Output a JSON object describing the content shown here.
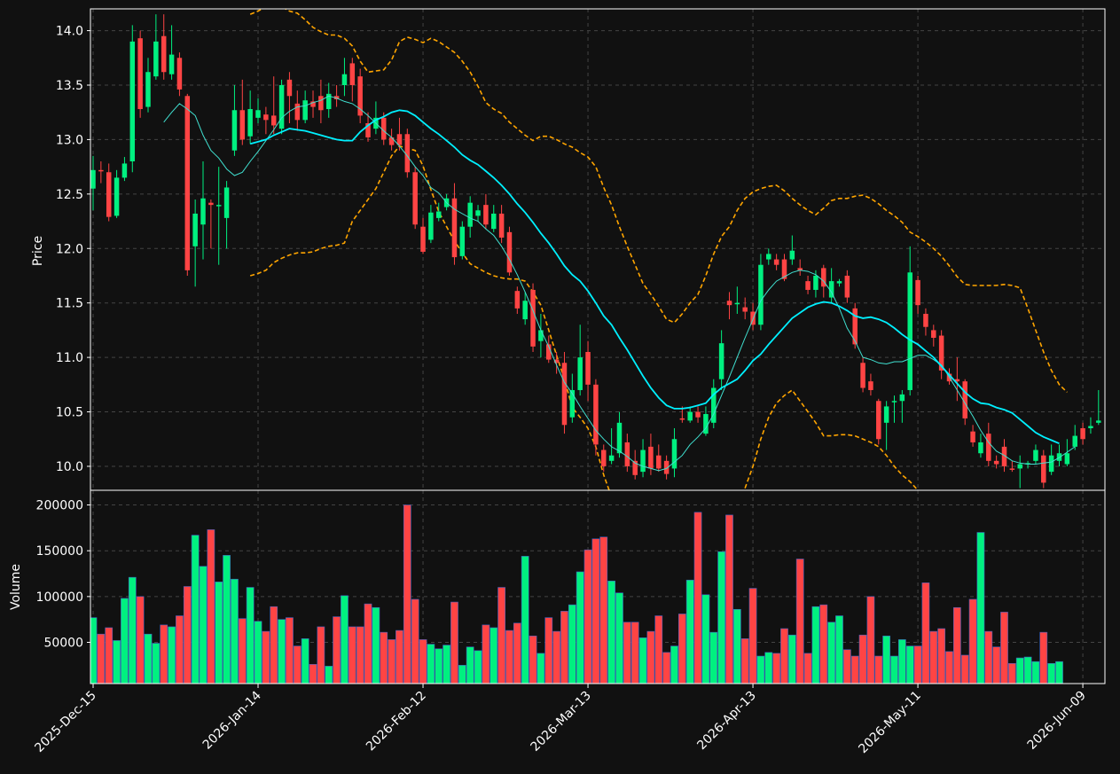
{
  "chart_data": {
    "type": "candlestick",
    "background": "#111111",
    "colors": {
      "up": "#00f080",
      "down": "#ff4444",
      "sma_fast": "#40e0d0",
      "sma_slow": "#00f0ff",
      "bollinger": "#ffa500",
      "grid": "#444444",
      "frame": "#ffffff"
    },
    "price_panel": {
      "ylabel": "Price",
      "ylim": [
        9.78,
        14.2
      ],
      "yticks": [
        "10.0",
        "10.5",
        "11.0",
        "11.5",
        "12.0",
        "12.5",
        "13.0",
        "13.5",
        "14.0"
      ]
    },
    "volume_panel": {
      "ylabel": "Volume",
      "ylim": [
        5000,
        216000
      ],
      "yticks": [
        "50000",
        "100000",
        "150000",
        "200000"
      ]
    },
    "x_tick_labels": [
      "2025-Dec-15",
      "2026-Jan-14",
      "2026-Feb-12",
      "2026-Mar-13",
      "2026-Apr-13",
      "2026-May-11",
      "2026-Jun-09"
    ],
    "x_tick_index": [
      0,
      21,
      42,
      63,
      84,
      105,
      126
    ],
    "candles": [
      [
        12.55,
        12.72,
        12.85,
        12.35
      ],
      [
        12.72,
        12.71,
        12.8,
        12.6
      ],
      [
        12.7,
        12.29,
        12.78,
        12.25
      ],
      [
        12.3,
        12.65,
        12.72,
        12.28
      ],
      [
        12.65,
        12.78,
        12.84,
        12.62
      ],
      [
        12.8,
        13.9,
        14.05,
        12.7
      ],
      [
        13.93,
        13.28,
        14.0,
        13.2
      ],
      [
        13.3,
        13.62,
        13.75,
        13.25
      ],
      [
        13.58,
        13.9,
        14.15,
        13.55
      ],
      [
        13.95,
        13.62,
        14.15,
        13.55
      ],
      [
        13.6,
        13.78,
        14.05,
        13.55
      ],
      [
        13.75,
        13.46,
        13.8,
        13.4
      ],
      [
        13.4,
        11.8,
        13.42,
        11.75
      ],
      [
        12.02,
        12.32,
        12.45,
        11.65
      ],
      [
        12.22,
        12.46,
        12.8,
        11.9
      ],
      [
        12.42,
        12.4,
        12.45,
        12.0
      ],
      [
        12.4,
        12.4,
        12.75,
        11.85
      ],
      [
        12.28,
        12.56,
        12.62,
        12.0
      ],
      [
        12.9,
        13.27,
        13.5,
        12.85
      ],
      [
        13.27,
        13.0,
        13.55,
        12.95
      ],
      [
        13.03,
        13.28,
        13.45,
        12.96
      ],
      [
        13.2,
        13.27,
        13.38,
        13.15
      ],
      [
        13.23,
        13.18,
        13.3,
        13.05
      ],
      [
        13.22,
        13.13,
        13.58,
        13.05
      ],
      [
        13.1,
        13.5,
        13.55,
        13.05
      ],
      [
        13.55,
        13.4,
        13.62,
        13.15
      ],
      [
        13.33,
        13.18,
        13.45,
        13.08
      ],
      [
        13.18,
        13.36,
        13.45,
        13.15
      ],
      [
        13.35,
        13.3,
        13.45,
        13.2
      ],
      [
        13.4,
        13.27,
        13.55,
        13.15
      ],
      [
        13.28,
        13.42,
        13.52,
        13.2
      ],
      [
        13.4,
        13.37,
        13.5,
        13.3
      ],
      [
        13.5,
        13.6,
        13.75,
        13.4
      ],
      [
        13.7,
        13.5,
        13.75,
        13.35
      ],
      [
        13.58,
        13.22,
        13.65,
        13.15
      ],
      [
        13.15,
        13.02,
        13.25,
        12.98
      ],
      [
        13.1,
        13.2,
        13.35,
        13.05
      ],
      [
        13.2,
        13.0,
        13.25,
        12.95
      ],
      [
        13.02,
        12.95,
        13.1,
        12.9
      ],
      [
        13.05,
        12.95,
        13.2,
        12.9
      ],
      [
        13.05,
        12.7,
        13.1,
        12.65
      ],
      [
        12.7,
        12.22,
        12.75,
        12.18
      ],
      [
        12.2,
        11.97,
        12.28,
        11.95
      ],
      [
        12.08,
        12.33,
        12.4,
        12.05
      ],
      [
        12.28,
        12.34,
        12.42,
        12.25
      ],
      [
        12.38,
        12.46,
        12.5,
        12.35
      ],
      [
        12.46,
        11.92,
        12.6,
        11.85
      ],
      [
        11.93,
        12.2,
        12.25,
        11.9
      ],
      [
        12.2,
        12.42,
        12.48,
        12.1
      ],
      [
        12.3,
        12.35,
        12.4,
        12.25
      ],
      [
        12.4,
        12.22,
        12.5,
        12.18
      ],
      [
        12.18,
        12.32,
        12.4,
        12.15
      ],
      [
        12.32,
        12.1,
        12.4,
        12.05
      ],
      [
        12.15,
        11.78,
        12.2,
        11.75
      ],
      [
        11.61,
        11.45,
        11.65,
        11.4
      ],
      [
        11.35,
        11.52,
        11.6,
        11.3
      ],
      [
        11.62,
        11.1,
        11.68,
        11.05
      ],
      [
        11.15,
        11.25,
        11.4,
        11.0
      ],
      [
        11.12,
        10.98,
        11.2,
        10.95
      ],
      [
        10.98,
        10.95,
        11.05,
        10.85
      ],
      [
        10.95,
        10.38,
        11.05,
        10.3
      ],
      [
        10.45,
        10.7,
        10.85,
        10.4
      ],
      [
        10.7,
        11.0,
        11.3,
        10.65
      ],
      [
        11.05,
        10.75,
        11.15,
        10.6
      ],
      [
        10.75,
        10.2,
        10.8,
        10.1
      ],
      [
        10.15,
        10.0,
        10.2,
        9.95
      ],
      [
        10.05,
        10.1,
        10.35,
        10.02
      ],
      [
        10.12,
        10.4,
        10.5,
        10.08
      ],
      [
        10.22,
        10.0,
        10.3,
        9.95
      ],
      [
        10.05,
        9.92,
        10.15,
        9.88
      ],
      [
        9.95,
        10.15,
        10.25,
        9.9
      ],
      [
        10.18,
        9.98,
        10.3,
        9.92
      ],
      [
        10.1,
        9.98,
        10.2,
        9.95
      ],
      [
        10.05,
        9.93,
        10.1,
        9.88
      ],
      [
        9.98,
        10.25,
        10.35,
        9.9
      ],
      [
        10.44,
        10.43,
        10.55,
        10.4
      ],
      [
        10.42,
        10.5,
        10.55,
        10.4
      ],
      [
        10.5,
        10.45,
        10.55,
        10.4
      ],
      [
        10.3,
        10.48,
        10.55,
        10.28
      ],
      [
        10.4,
        10.72,
        10.8,
        10.35
      ],
      [
        10.8,
        11.13,
        11.25,
        10.7
      ],
      [
        11.52,
        11.48,
        11.6,
        11.35
      ],
      [
        11.5,
        11.5,
        11.65,
        11.4
      ],
      [
        11.46,
        11.42,
        11.55,
        11.35
      ],
      [
        11.42,
        11.3,
        11.5,
        11.25
      ],
      [
        11.3,
        11.85,
        11.95,
        11.25
      ],
      [
        11.9,
        11.95,
        12.0,
        11.85
      ],
      [
        11.9,
        11.85,
        11.95,
        11.8
      ],
      [
        11.9,
        11.72,
        11.95,
        11.7
      ],
      [
        11.9,
        11.98,
        12.12,
        11.85
      ],
      [
        11.82,
        11.8,
        11.9,
        11.75
      ],
      [
        11.7,
        11.62,
        11.75,
        11.58
      ],
      [
        11.62,
        11.75,
        11.8,
        11.55
      ],
      [
        11.82,
        11.65,
        11.85,
        11.55
      ],
      [
        11.55,
        11.7,
        11.82,
        11.5
      ],
      [
        11.68,
        11.7,
        11.72,
        11.65
      ],
      [
        11.75,
        11.55,
        11.8,
        11.5
      ],
      [
        11.45,
        11.12,
        11.5,
        11.08
      ],
      [
        10.95,
        10.72,
        11.0,
        10.68
      ],
      [
        10.78,
        10.7,
        10.85,
        10.65
      ],
      [
        10.6,
        10.25,
        10.62,
        10.2
      ],
      [
        10.4,
        10.55,
        10.6,
        10.15
      ],
      [
        10.6,
        10.6,
        10.65,
        10.4
      ],
      [
        10.6,
        10.66,
        10.7,
        10.4
      ],
      [
        10.7,
        11.78,
        12.02,
        10.65
      ],
      [
        11.71,
        11.48,
        11.75,
        11.4
      ],
      [
        11.4,
        11.28,
        11.45,
        11.2
      ],
      [
        11.25,
        11.18,
        11.3,
        11.1
      ],
      [
        11.2,
        10.88,
        11.25,
        10.8
      ],
      [
        10.85,
        10.78,
        10.9,
        10.75
      ],
      [
        10.8,
        10.78,
        11.0,
        10.6
      ],
      [
        10.78,
        10.44,
        10.8,
        10.38
      ],
      [
        10.32,
        10.22,
        10.38,
        10.18
      ],
      [
        10.12,
        10.22,
        10.3,
        10.08
      ],
      [
        10.3,
        10.05,
        10.4,
        10.0
      ],
      [
        10.05,
        10.02,
        10.1,
        9.98
      ],
      [
        10.18,
        10.0,
        10.25,
        9.95
      ],
      [
        9.98,
        9.97,
        10.05,
        9.95
      ],
      [
        9.98,
        10.02,
        10.1,
        9.8
      ],
      [
        10.02,
        10.03,
        10.05,
        9.98
      ],
      [
        10.05,
        10.15,
        10.2,
        10.02
      ],
      [
        10.1,
        9.85,
        10.15,
        9.8
      ],
      [
        9.95,
        10.1,
        10.2,
        9.92
      ],
      [
        10.05,
        10.12,
        10.2,
        10.0
      ],
      [
        10.02,
        10.12,
        10.25,
        10.0
      ],
      [
        10.18,
        10.28,
        10.38,
        10.15
      ],
      [
        10.35,
        10.25,
        10.4,
        10.2
      ],
      [
        10.35,
        10.37,
        10.45,
        10.3
      ],
      [
        10.4,
        10.42,
        10.7,
        10.38
      ]
    ],
    "volume": [
      77000,
      59000,
      66000,
      52000,
      98000,
      121000,
      100000,
      59000,
      49000,
      69000,
      67000,
      79000,
      111000,
      167000,
      133000,
      173000,
      116000,
      145000,
      119000,
      76000,
      110000,
      73000,
      62000,
      89000,
      75000,
      77000,
      46000,
      54000,
      26000,
      67000,
      24000,
      78000,
      101000,
      67000,
      67000,
      92000,
      88000,
      61000,
      53000,
      63000,
      200000,
      97000,
      53000,
      48000,
      43000,
      47000,
      94000,
      25000,
      45000,
      41000,
      69000,
      66000,
      110000,
      63000,
      71000,
      144000,
      57000,
      38000,
      77000,
      62000,
      84000,
      91000,
      127000,
      151000,
      163000,
      165000,
      117000,
      104000,
      72000,
      72000,
      55000,
      62000,
      79000,
      39000,
      46000,
      81000,
      118000,
      192000,
      102000,
      61000,
      149000,
      189000,
      86000,
      54000,
      109000,
      35000,
      39000,
      38000,
      65000,
      58000,
      141000,
      38000,
      89000,
      91000,
      72000,
      79000,
      42000,
      35000,
      58000,
      100000,
      35000,
      57000,
      35000,
      53000,
      46000,
      46000,
      115000,
      62000,
      65000,
      40000,
      88000,
      36000,
      97000,
      170000,
      62000,
      45000,
      83000,
      27000,
      33000,
      34000,
      29000,
      61000,
      27000,
      29000
    ],
    "sma_fast_start": 9,
    "sma_fast": [
      13.16,
      13.25,
      13.33,
      13.28,
      13.22,
      13.04,
      12.9,
      12.83,
      12.73,
      12.67,
      12.7,
      12.8,
      12.89,
      12.99,
      13.09,
      13.2,
      13.26,
      13.3,
      13.31,
      13.34,
      13.36,
      13.4,
      13.38,
      13.35,
      13.33,
      13.28,
      13.22,
      13.15,
      13.08,
      13.02,
      12.94,
      12.85,
      12.75,
      12.67,
      12.56,
      12.51,
      12.42,
      12.36,
      12.32,
      12.28,
      12.25,
      12.18,
      12.12,
      12.02,
      11.9,
      11.76,
      11.6,
      11.43,
      11.25,
      11.1,
      10.93,
      10.77,
      10.67,
      10.55,
      10.44,
      10.33,
      10.25,
      10.18,
      10.14,
      10.09,
      10.03,
      10.0,
      9.98,
      9.96,
      9.98,
      10.04,
      10.1,
      10.2,
      10.27,
      10.35,
      10.48,
      10.65,
      10.82,
      11.0,
      11.18,
      11.35,
      11.52,
      11.62,
      11.7,
      11.74,
      11.78,
      11.8,
      11.79,
      11.76,
      11.7,
      11.6,
      11.45,
      11.27,
      11.15,
      11.0,
      10.98,
      10.95,
      10.94,
      10.96,
      10.96,
      10.99,
      11.02,
      11.02,
      10.98,
      10.93,
      10.82,
      10.7,
      10.58,
      10.46,
      10.33,
      10.22,
      10.14,
      10.1,
      10.05,
      10.03,
      10.02,
      10.02,
      10.03,
      10.04,
      10.08,
      10.13,
      10.18
    ],
    "sma_slow_start": 20,
    "sma_slow": [
      12.96,
      12.98,
      13.0,
      13.04,
      13.07,
      13.1,
      13.09,
      13.08,
      13.06,
      13.04,
      13.02,
      13.0,
      12.99,
      12.99,
      13.07,
      13.13,
      13.18,
      13.21,
      13.25,
      13.27,
      13.26,
      13.22,
      13.16,
      13.1,
      13.05,
      12.99,
      12.93,
      12.86,
      12.81,
      12.77,
      12.71,
      12.65,
      12.58,
      12.5,
      12.41,
      12.33,
      12.24,
      12.14,
      12.05,
      11.95,
      11.84,
      11.76,
      11.7,
      11.61,
      11.5,
      11.38,
      11.3,
      11.18,
      11.07,
      10.95,
      10.83,
      10.72,
      10.63,
      10.56,
      10.53,
      10.53,
      10.54,
      10.56,
      10.58,
      10.66,
      10.72,
      10.76,
      10.8,
      10.88,
      10.97,
      11.03,
      11.12,
      11.2,
      11.28,
      11.36,
      11.41,
      11.46,
      11.49,
      11.51,
      11.5,
      11.47,
      11.43,
      11.38,
      11.36,
      11.37,
      11.35,
      11.32,
      11.27,
      11.21,
      11.16,
      11.12,
      11.06,
      11.0,
      10.92,
      10.84,
      10.76,
      10.68,
      10.62,
      10.58,
      10.57,
      10.54,
      10.52,
      10.49,
      10.43,
      10.37,
      10.31,
      10.27,
      10.24,
      10.21
    ],
    "bb_upper": [
      14.15,
      14.18,
      14.22,
      14.25,
      14.22,
      14.18,
      14.16,
      14.1,
      14.03,
      13.99,
      13.96,
      13.96,
      13.93,
      13.86,
      13.72,
      13.62,
      13.63,
      13.64,
      13.73,
      13.9,
      13.94,
      13.92,
      13.89,
      13.93,
      13.9,
      13.85,
      13.8,
      13.72,
      13.62,
      13.49,
      13.34,
      13.28,
      13.24,
      13.16,
      13.1,
      13.04,
      12.99,
      13.03,
      13.03,
      13.0,
      12.96,
      12.93,
      12.88,
      12.84,
      12.75,
      12.56,
      12.4,
      12.2,
      12.02,
      11.85,
      11.68,
      11.58,
      11.47,
      11.35,
      11.32,
      11.4,
      11.5,
      11.58,
      11.75,
      11.95,
      12.11,
      12.2,
      12.35,
      12.46,
      12.52,
      12.55,
      12.57,
      12.58,
      12.53,
      12.46,
      12.4,
      12.35,
      12.31,
      12.37,
      12.44,
      12.46,
      12.46,
      12.48,
      12.49,
      12.46,
      12.41,
      12.35,
      12.3,
      12.24,
      12.15,
      12.11,
      12.06,
      12.0,
      11.93,
      11.84,
      11.74,
      11.67,
      11.66,
      11.66,
      11.66,
      11.66,
      11.67,
      11.66,
      11.64,
      11.45,
      11.25,
      11.05,
      10.88,
      10.75,
      10.68
    ],
    "bb_lower": [
      11.75,
      11.77,
      11.8,
      11.87,
      11.91,
      11.94,
      11.96,
      11.96,
      11.97,
      12.0,
      12.02,
      12.03,
      12.05,
      12.25,
      12.35,
      12.45,
      12.55,
      12.7,
      12.85,
      12.94,
      12.92,
      12.9,
      12.76,
      12.54,
      12.34,
      12.2,
      12.07,
      11.96,
      11.86,
      11.82,
      11.78,
      11.75,
      11.73,
      11.72,
      11.72,
      11.7,
      11.6,
      11.48,
      11.25,
      11.02,
      10.8,
      10.54,
      10.45,
      10.35,
      10.18,
      9.92,
      9.72,
      9.55,
      9.4,
      9.3,
      9.15,
      9.0,
      8.9,
      8.8,
      8.8,
      8.82,
      8.85,
      8.9,
      8.98,
      9.12,
      9.28,
      9.45,
      9.62,
      9.8,
      10.0,
      10.25,
      10.45,
      10.58,
      10.65,
      10.7,
      10.6,
      10.5,
      10.4,
      10.28,
      10.28,
      10.29,
      10.29,
      10.28,
      10.25,
      10.22,
      10.18,
      10.1,
      10.0,
      9.92,
      9.86,
      9.78,
      9.72,
      9.65,
      9.58,
      9.52,
      9.45,
      9.4,
      9.36,
      9.3,
      9.25,
      9.2,
      9.15,
      9.1,
      9.05,
      9.0,
      8.95,
      8.9,
      8.86,
      8.82,
      8.78
    ]
  }
}
